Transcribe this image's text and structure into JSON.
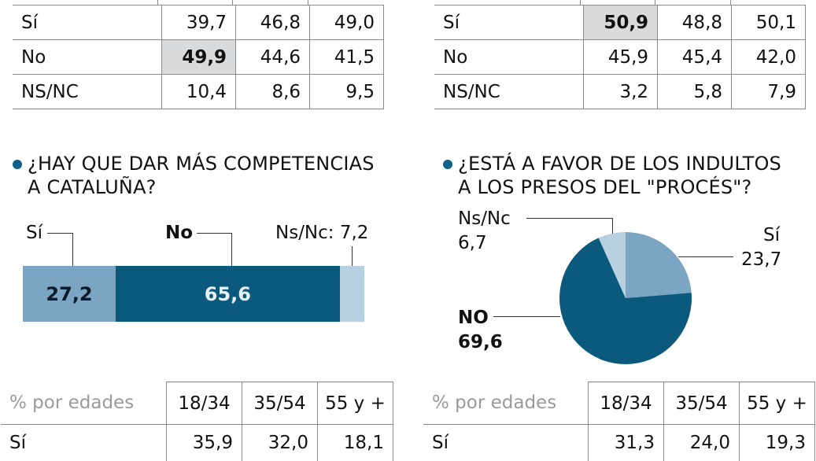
{
  "colors": {
    "si": "#7ba5c2",
    "no": "#0b5a7d",
    "nsnc": "#b8d1e1",
    "highlight": "#d9dadc",
    "bullet": "#0e6289"
  },
  "top_left_table": {
    "rows": [
      {
        "label": "Sí",
        "values": [
          "39,7",
          "46,8",
          "49,0"
        ],
        "highlight": -1
      },
      {
        "label": "No",
        "values": [
          "49,9",
          "44,6",
          "41,5"
        ],
        "highlight": 0
      },
      {
        "label": "NS/NC",
        "values": [
          "10,4",
          "8,6",
          "9,5"
        ],
        "highlight": -1
      }
    ]
  },
  "top_right_table": {
    "rows": [
      {
        "label": "Sí",
        "values": [
          "50,9",
          "48,8",
          "50,1"
        ],
        "highlight": 0
      },
      {
        "label": "No",
        "values": [
          "45,9",
          "45,4",
          "42,0"
        ],
        "highlight": -1
      },
      {
        "label": "NS/NC",
        "values": [
          "3,2",
          "5,8",
          "7,9"
        ],
        "highlight": -1
      }
    ]
  },
  "chart_data": [
    {
      "type": "bar",
      "title": "¿HAY QUE DAR MÁS COMPETENCIAS A CATALUÑA?",
      "title_lines": [
        "¿HAY QUE DAR MÁS COMPETENCIAS",
        "A CATALUÑA?"
      ],
      "orientation": "horizontal-stacked",
      "categories": [
        "Sí",
        "No",
        "Ns/Nc"
      ],
      "values": [
        27.2,
        65.6,
        7.2
      ],
      "labels": {
        "si": "Sí",
        "no": "No",
        "nsnc": "Ns/Nc: 7,2",
        "si_value": "27,2",
        "no_value": "65,6"
      },
      "age_table": {
        "caption": "% por edades",
        "headers": [
          "18/34",
          "35/54",
          "55 y +"
        ],
        "rows": [
          {
            "label": "Sí",
            "values": [
              "35,9",
              "32,0",
              "18,1"
            ]
          }
        ]
      }
    },
    {
      "type": "pie",
      "title": "¿ESTÁ A FAVOR DE LOS INDULTOS A LOS PRESOS DEL \"PROCÉS\"?",
      "title_lines": [
        "¿ESTÁ A FAVOR DE LOS INDULTOS",
        "A LOS PRESOS DEL \"PROCÉS\"?"
      ],
      "categories": [
        "Sí",
        "NO",
        "Ns/Nc"
      ],
      "values": [
        23.7,
        69.6,
        6.7
      ],
      "labels": {
        "si": "Sí",
        "si_value": "23,7",
        "no": "NO",
        "no_value": "69,6",
        "nsnc": "Ns/Nc",
        "nsnc_value": "6,7"
      },
      "age_table": {
        "caption": "% por edades",
        "headers": [
          "18/34",
          "35/54",
          "55 y +"
        ],
        "rows": [
          {
            "label": "Sí",
            "values": [
              "31,3",
              "24,0",
              "19,3"
            ]
          }
        ]
      }
    }
  ]
}
